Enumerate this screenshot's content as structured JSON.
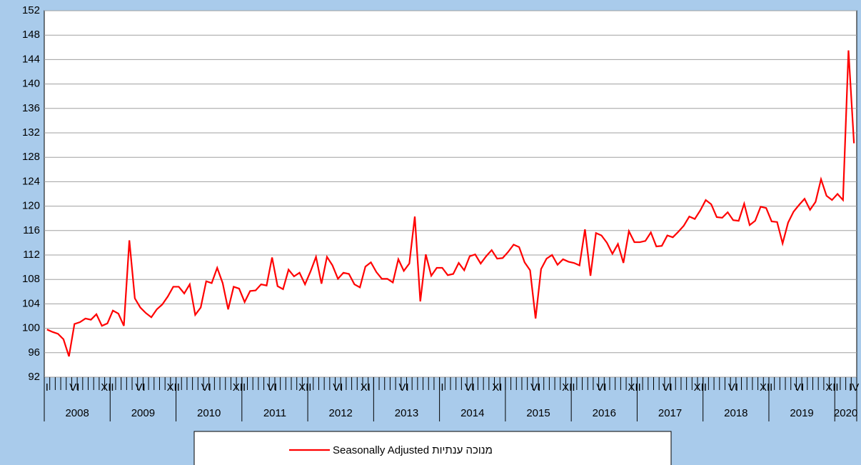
{
  "chart_data": {
    "type": "line",
    "categories": [
      "I",
      null,
      null,
      null,
      null,
      "VI",
      null,
      null,
      null,
      null,
      null,
      "XII",
      null,
      null,
      null,
      null,
      null,
      "VI",
      null,
      null,
      null,
      null,
      null,
      "XII",
      null,
      null,
      null,
      null,
      null,
      "VI",
      null,
      null,
      null,
      null,
      null,
      "XII",
      null,
      null,
      null,
      null,
      null,
      "VI",
      null,
      null,
      null,
      null,
      null,
      "XII",
      null,
      null,
      null,
      null,
      null,
      "VI",
      null,
      null,
      null,
      null,
      "XI",
      null,
      null,
      null,
      null,
      null,
      null,
      "VI",
      null,
      null,
      null,
      null,
      null,
      null,
      "I",
      null,
      null,
      null,
      null,
      "VI",
      null,
      null,
      null,
      null,
      "XI",
      null,
      null,
      null,
      null,
      null,
      null,
      "VI",
      null,
      null,
      null,
      null,
      null,
      "XII",
      null,
      null,
      null,
      null,
      null,
      "VI",
      null,
      null,
      null,
      null,
      null,
      "XII",
      null,
      null,
      null,
      null,
      null,
      "VI",
      null,
      null,
      null,
      null,
      null,
      "XII",
      null,
      null,
      null,
      null,
      null,
      "VI",
      null,
      null,
      null,
      null,
      null,
      "XII",
      null,
      null,
      null,
      null,
      null,
      "VI",
      null,
      null,
      null,
      null,
      null,
      "XII",
      null,
      null,
      null,
      "IV"
    ],
    "year_labels": [
      "2008",
      "2009",
      "2010",
      "2011",
      "2012",
      "2013",
      "2014",
      "2015",
      "2016",
      "2017",
      "2018",
      "2019",
      "2020"
    ],
    "series": [
      {
        "name": "Seasonally Adjusted מנוכה ענתיות",
        "color": "#ff0000",
        "values": [
          99.8,
          99.4,
          99.1,
          98.2,
          95.4,
          100.7,
          101,
          101.6,
          101.4,
          102.3,
          100.4,
          100.8,
          102.9,
          102.4,
          100.4,
          114.4,
          104.9,
          103.4,
          102.5,
          101.8,
          103.1,
          103.9,
          105.2,
          106.8,
          106.8,
          105.7,
          107.2,
          102.2,
          103.4,
          107.7,
          107.4,
          109.9,
          107.4,
          103.1,
          106.8,
          106.5,
          104.3,
          106.1,
          106.2,
          107.2,
          107,
          111.6,
          106.9,
          106.4,
          109.6,
          108.5,
          109.1,
          107.2,
          109.3,
          111.7,
          107.3,
          111.7,
          110.3,
          108.1,
          109.1,
          108.9,
          107.2,
          106.7,
          110.1,
          110.8,
          109.2,
          108.1,
          108.1,
          107.5,
          111.3,
          109.4,
          110.6,
          118.3,
          104.4,
          112.1,
          108.6,
          109.9,
          109.9,
          108.7,
          108.9,
          110.7,
          109.5,
          111.8,
          112.1,
          110.6,
          111.8,
          112.8,
          111.4,
          111.5,
          112.5,
          113.7,
          113.3,
          110.8,
          109.5,
          101.6,
          109.7,
          111.4,
          112,
          110.4,
          111.3,
          110.9,
          110.7,
          110.3,
          116.2,
          108.6,
          115.6,
          115.2,
          114,
          112.2,
          113.8,
          110.7,
          115.9,
          114.1,
          114.1,
          114.3,
          115.7,
          113.4,
          113.5,
          115.2,
          114.9,
          115.8,
          116.8,
          118.3,
          117.9,
          119.3,
          121,
          120.3,
          118.2,
          118.1,
          119,
          117.7,
          117.6,
          120.4,
          116.9,
          117.6,
          119.9,
          119.7,
          117.5,
          117.4,
          113.9,
          117.3,
          119.1,
          120.2,
          121.2,
          119.4,
          120.7,
          124.4,
          121.7,
          121,
          122,
          121,
          145.5,
          130.3
        ]
      }
    ],
    "ylim": [
      92,
      152
    ],
    "yticks": [
      92,
      96,
      100,
      104,
      108,
      112,
      116,
      120,
      124,
      128,
      132,
      136,
      140,
      144,
      148,
      152
    ],
    "grid": true
  }
}
